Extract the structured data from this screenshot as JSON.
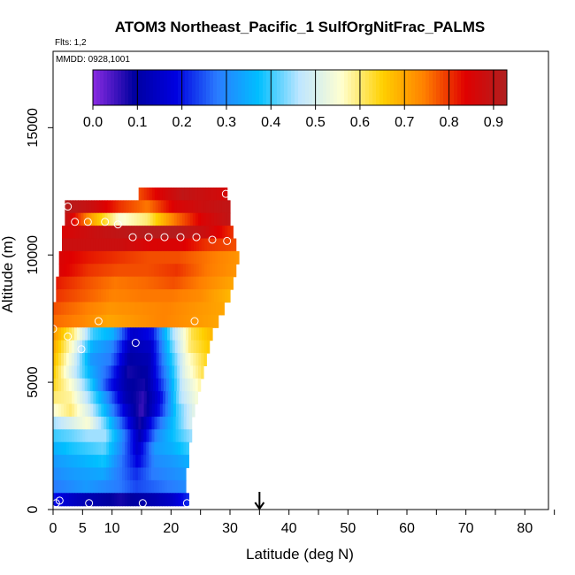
{
  "chart_data": {
    "type": "heatmap",
    "title": "ATOM3 Northeast_Pacific_1 SulfOrgNitFrac_PALMS",
    "flights_label": "Flts: 1,2",
    "dates_label": "MMDD: 0928,1001",
    "xlabel": "Latitude (deg N)",
    "ylabel": "Altitude (m)",
    "xlim": [
      0,
      84
    ],
    "ylim": [
      0,
      18000
    ],
    "x_major_ticks": [
      0,
      10,
      20,
      30,
      40,
      50,
      60,
      70,
      80
    ],
    "x_minor_ticks": [
      5
    ],
    "y_ticks": [
      0,
      5000,
      10000,
      15000
    ],
    "colorbar": {
      "range": [
        0,
        0.93
      ],
      "ticks": [
        0.0,
        0.1,
        0.2,
        0.3,
        0.4,
        0.5,
        0.6,
        0.7,
        0.8,
        0.9
      ],
      "tick_labels": [
        "0.0",
        "0.1",
        "0.2",
        "0.3",
        "0.4",
        "0.5",
        "0.6",
        "0.7",
        "0.8",
        "0.9"
      ],
      "colors": [
        "#8a2be2",
        "#0000a0",
        "#0000e0",
        "#2a7bff",
        "#00bfff",
        "#bfe6ff",
        "#ffffd0",
        "#ffd000",
        "#ff8000",
        "#e00000",
        "#b02020"
      ]
    },
    "arrow_latitude": 35,
    "curtain_rows": [
      {
        "alt": 12400,
        "lat_min": 14.5,
        "lat_max": 29.5,
        "values": [
          0.78,
          0.85,
          0.9,
          0.88,
          0.86
        ]
      },
      {
        "alt": 11900,
        "lat_min": 2.0,
        "lat_max": 30.0,
        "values": [
          0.92,
          0.88,
          0.8,
          0.75,
          0.85,
          0.88,
          0.9
        ]
      },
      {
        "alt": 11400,
        "lat_min": 2.0,
        "lat_max": 30.0,
        "values": [
          0.9,
          0.7,
          0.55,
          0.6,
          0.75,
          0.85,
          0.9
        ]
      },
      {
        "alt": 10900,
        "lat_min": 1.5,
        "lat_max": 30.5,
        "values": [
          0.85,
          0.88,
          0.9,
          0.92,
          0.92,
          0.88,
          0.8
        ]
      },
      {
        "alt": 10400,
        "lat_min": 1.5,
        "lat_max": 31.0,
        "values": [
          0.88,
          0.88,
          0.88,
          0.85,
          0.85,
          0.8,
          0.78
        ]
      },
      {
        "alt": 9900,
        "lat_min": 1.0,
        "lat_max": 31.5,
        "values": [
          0.85,
          0.82,
          0.8,
          0.78,
          0.78,
          0.75,
          0.72
        ]
      },
      {
        "alt": 9400,
        "lat_min": 1.0,
        "lat_max": 31.0,
        "values": [
          0.85,
          0.8,
          0.78,
          0.78,
          0.8,
          0.75,
          0.72
        ]
      },
      {
        "alt": 8900,
        "lat_min": 0.5,
        "lat_max": 30.5,
        "values": [
          0.82,
          0.78,
          0.75,
          0.76,
          0.78,
          0.74,
          0.7
        ]
      },
      {
        "alt": 8400,
        "lat_min": 0.5,
        "lat_max": 30.0,
        "values": [
          0.8,
          0.77,
          0.74,
          0.75,
          0.75,
          0.73,
          0.68
        ]
      },
      {
        "alt": 7900,
        "lat_min": 0.0,
        "lat_max": 29.0,
        "values": [
          0.78,
          0.75,
          0.72,
          0.73,
          0.74,
          0.72,
          0.7
        ]
      },
      {
        "alt": 7400,
        "lat_min": 0.0,
        "lat_max": 28.0,
        "values": [
          0.76,
          0.74,
          0.7,
          0.72,
          0.74,
          0.72,
          0.7
        ]
      },
      {
        "alt": 6900,
        "lat_min": 0.0,
        "lat_max": 27.0,
        "values": [
          0.72,
          0.6,
          0.4,
          0.35,
          0.15,
          0.2,
          0.45,
          0.62,
          0.68
        ]
      },
      {
        "alt": 6400,
        "lat_min": 0.0,
        "lat_max": 26.5,
        "values": [
          0.7,
          0.55,
          0.35,
          0.3,
          0.12,
          0.15,
          0.4,
          0.6,
          0.66
        ]
      },
      {
        "alt": 5900,
        "lat_min": 0.0,
        "lat_max": 26.0,
        "values": [
          0.68,
          0.52,
          0.32,
          0.28,
          0.1,
          0.12,
          0.35,
          0.55,
          0.64
        ]
      },
      {
        "alt": 5400,
        "lat_min": 0.0,
        "lat_max": 25.5,
        "values": [
          0.66,
          0.5,
          0.35,
          0.25,
          0.08,
          0.1,
          0.3,
          0.52,
          0.62
        ]
      },
      {
        "alt": 4900,
        "lat_min": 0.0,
        "lat_max": 25.0,
        "values": [
          0.64,
          0.55,
          0.4,
          0.22,
          0.1,
          0.08,
          0.25,
          0.48,
          0.58
        ]
      },
      {
        "alt": 4400,
        "lat_min": 0.0,
        "lat_max": 24.5,
        "values": [
          0.6,
          0.58,
          0.45,
          0.3,
          0.12,
          0.06,
          0.2,
          0.45,
          0.55
        ]
      },
      {
        "alt": 3900,
        "lat_min": 0.0,
        "lat_max": 24.0,
        "values": [
          0.55,
          0.6,
          0.5,
          0.35,
          0.18,
          0.05,
          0.2,
          0.4,
          0.52
        ]
      },
      {
        "alt": 3400,
        "lat_min": 0.0,
        "lat_max": 23.5,
        "values": [
          0.45,
          0.5,
          0.55,
          0.42,
          0.25,
          0.08,
          0.25,
          0.38,
          0.5
        ]
      },
      {
        "alt": 2900,
        "lat_min": 0.0,
        "lat_max": 23.5,
        "values": [
          0.4,
          0.42,
          0.45,
          0.45,
          0.3,
          0.12,
          0.3,
          0.38,
          0.45
        ]
      },
      {
        "alt": 2400,
        "lat_min": 0.0,
        "lat_max": 23.0,
        "values": [
          0.35,
          0.38,
          0.4,
          0.42,
          0.3,
          0.15,
          0.32,
          0.35,
          0.4
        ]
      },
      {
        "alt": 1900,
        "lat_min": 0.0,
        "lat_max": 23.0,
        "values": [
          0.32,
          0.34,
          0.36,
          0.38,
          0.28,
          0.18,
          0.3,
          0.32,
          0.35
        ]
      },
      {
        "alt": 1400,
        "lat_min": 0.0,
        "lat_max": 22.5,
        "values": [
          0.3,
          0.32,
          0.33,
          0.34,
          0.28,
          0.22,
          0.28,
          0.3,
          0.32
        ]
      },
      {
        "alt": 900,
        "lat_min": 0.0,
        "lat_max": 22.5,
        "values": [
          0.28,
          0.3,
          0.32,
          0.3,
          0.28,
          0.24,
          0.26,
          0.28,
          0.3
        ]
      },
      {
        "alt": 400,
        "lat_min": 0.0,
        "lat_max": 23.0,
        "values": [
          0.2,
          0.15,
          0.12,
          0.1,
          0.08,
          0.1,
          0.12,
          0.15,
          0.22
        ]
      }
    ],
    "sample_points": [
      {
        "lat": 2.5,
        "alt": 11900
      },
      {
        "lat": 3.7,
        "alt": 11300
      },
      {
        "lat": 5.9,
        "alt": 11300
      },
      {
        "lat": 8.8,
        "alt": 11300
      },
      {
        "lat": 11.0,
        "alt": 11200
      },
      {
        "lat": 13.5,
        "alt": 10700
      },
      {
        "lat": 16.2,
        "alt": 10700
      },
      {
        "lat": 18.9,
        "alt": 10700
      },
      {
        "lat": 21.6,
        "alt": 10700
      },
      {
        "lat": 24.3,
        "alt": 10700
      },
      {
        "lat": 27.0,
        "alt": 10600
      },
      {
        "lat": 29.5,
        "alt": 10550
      },
      {
        "lat": 29.3,
        "alt": 12400
      },
      {
        "lat": 7.7,
        "alt": 7400
      },
      {
        "lat": 24.0,
        "alt": 7400
      },
      {
        "lat": 0.0,
        "alt": 7100
      },
      {
        "lat": 2.5,
        "alt": 6800
      },
      {
        "lat": 4.8,
        "alt": 6300
      },
      {
        "lat": 14.0,
        "alt": 6550
      },
      {
        "lat": 0.5,
        "alt": 250
      },
      {
        "lat": 1.1,
        "alt": 350
      },
      {
        "lat": 6.1,
        "alt": 250
      },
      {
        "lat": 15.2,
        "alt": 250
      },
      {
        "lat": 22.7,
        "alt": 250
      }
    ]
  }
}
